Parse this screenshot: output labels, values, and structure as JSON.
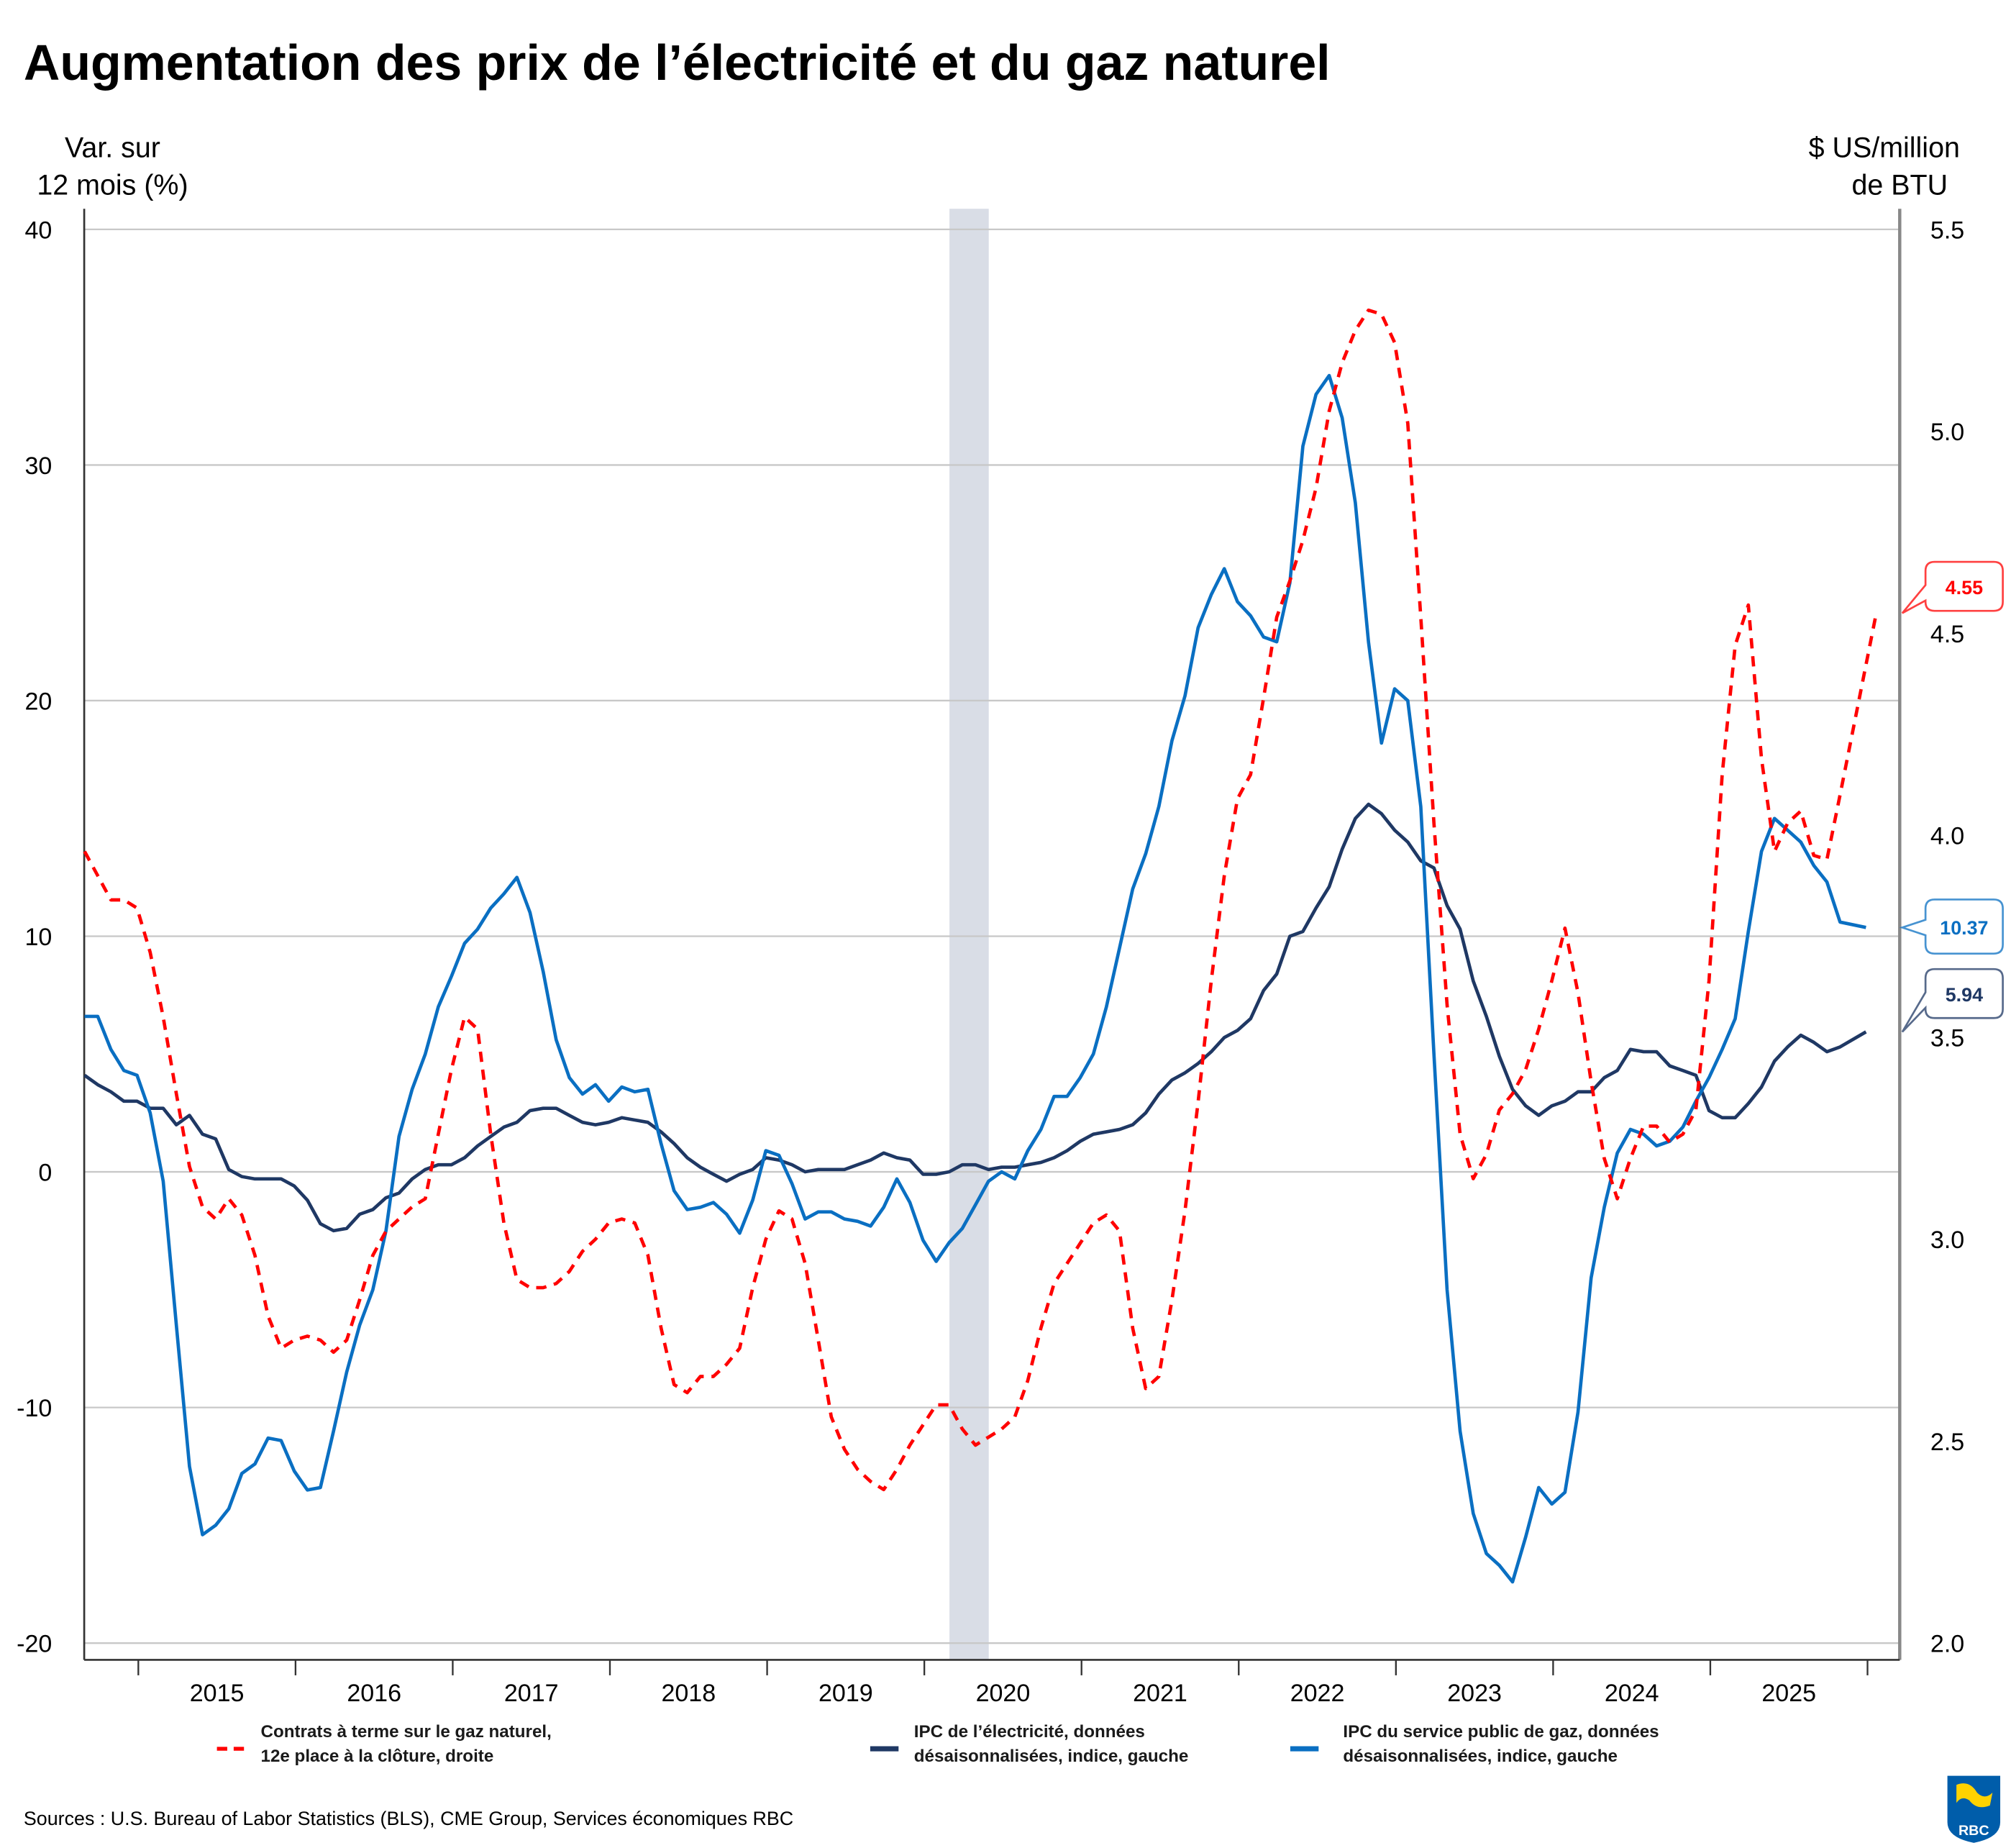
{
  "title": "Augmentation des prix de l’électricité et du gaz naturel",
  "left_axis_title": [
    "Var. sur",
    "12 mois (%)"
  ],
  "right_axis_title": [
    "$ US/million",
    "de BTU"
  ],
  "source": "Sources : U.S. Bureau of Labor Statistics (BLS), CME Group, Services économiques RBC",
  "logo_text": "RBC",
  "colors": {
    "gas_futures": "#ff0000",
    "electricity_cpi": "#1f3864",
    "gas_utility_cpi": "#0a6fc2",
    "recession": "#d9dde6",
    "grid": "#c8c8c8"
  },
  "chart_data": {
    "type": "line",
    "title": "Augmentation des prix de l’électricité et du gaz naturel",
    "period": {
      "start": "2014-09",
      "end": "2025-12",
      "frequency": "monthly"
    },
    "x_tick_labels": [
      "2015",
      "2016",
      "2017",
      "2018",
      "2019",
      "2020",
      "2021",
      "2022",
      "2023",
      "2024",
      "2025"
    ],
    "left_axis": {
      "label": "Var. sur 12 mois (%)",
      "range": [
        -20,
        40
      ],
      "ticks": [
        "40",
        "30",
        "20",
        "10",
        "0",
        "-10",
        "-20"
      ]
    },
    "right_axis": {
      "label": "$ US/million de BTU",
      "range": [
        2.0,
        5.5
      ],
      "ticks": [
        "5.5",
        "5.0",
        "4.5",
        "4.0",
        "3.5",
        "3.0",
        "2.5",
        "2.0"
      ]
    },
    "grid": true,
    "recession_shading": {
      "start": "2020-04",
      "end": "2020-06"
    },
    "legend_position": "bottom",
    "series": [
      {
        "name": "Contrats à terme sur le gaz naturel, 12e place à la clôture, droite",
        "legend_lines": [
          "Contrats à terme sur le gaz naturel,",
          "12e place à la clôture, droite"
        ],
        "axis": "right",
        "style": "dashed",
        "color": "#ff0000",
        "last_value_label": "4.55",
        "values": [
          3.96,
          3.9,
          3.84,
          3.84,
          3.82,
          3.71,
          3.55,
          3.36,
          3.18,
          3.08,
          3.05,
          3.1,
          3.06,
          2.96,
          2.81,
          2.73,
          2.75,
          2.76,
          2.75,
          2.72,
          2.75,
          2.85,
          2.96,
          3.02,
          3.05,
          3.08,
          3.1,
          3.26,
          3.42,
          3.55,
          3.52,
          3.26,
          3.04,
          2.9,
          2.88,
          2.88,
          2.89,
          2.92,
          2.97,
          3.0,
          3.04,
          3.05,
          3.04,
          2.96,
          2.78,
          2.64,
          2.62,
          2.66,
          2.66,
          2.69,
          2.73,
          2.88,
          3.0,
          3.07,
          3.05,
          2.94,
          2.75,
          2.56,
          2.48,
          2.43,
          2.4,
          2.38,
          2.43,
          2.49,
          2.54,
          2.59,
          2.59,
          2.53,
          2.49,
          2.51,
          2.53,
          2.56,
          2.65,
          2.78,
          2.89,
          2.94,
          2.99,
          3.04,
          3.06,
          3.02,
          2.78,
          2.63,
          2.66,
          2.85,
          3.07,
          3.34,
          3.64,
          3.9,
          4.09,
          4.15,
          4.34,
          4.54,
          4.63,
          4.73,
          4.86,
          5.05,
          5.17,
          5.25,
          5.3,
          5.29,
          5.22,
          5.02,
          4.54,
          4.03,
          3.58,
          3.26,
          3.15,
          3.21,
          3.32,
          3.36,
          3.42,
          3.52,
          3.64,
          3.77,
          3.61,
          3.39,
          3.2,
          3.1,
          3.2,
          3.28,
          3.28,
          3.24,
          3.26,
          3.32,
          3.64,
          4.15,
          4.47,
          4.57,
          4.19,
          3.96,
          4.03,
          4.06,
          3.95,
          3.94,
          4.1,
          4.55
        ]
      },
      {
        "name": "IPC de l’électricité, données désaisonnalisées, indice, gauche",
        "legend_lines": [
          "IPC de l’électricité, données",
          "désaisonnalisées, indice, gauche"
        ],
        "axis": "left",
        "style": "solid",
        "color": "#1f3864",
        "last_value_label": "5.94",
        "values": [
          4.1,
          3.7,
          3.4,
          3.0,
          3.0,
          2.7,
          2.7,
          2.0,
          2.4,
          1.6,
          1.4,
          0.1,
          -0.2,
          -0.3,
          -0.3,
          -0.3,
          -0.6,
          -1.2,
          -2.2,
          -2.5,
          -2.4,
          -1.8,
          -1.6,
          -1.1,
          -0.9,
          -0.3,
          0.1,
          0.3,
          0.3,
          0.6,
          1.1,
          1.5,
          1.9,
          2.1,
          2.6,
          2.7,
          2.7,
          2.4,
          2.1,
          2.0,
          2.1,
          2.3,
          2.2,
          2.1,
          1.7,
          1.2,
          0.6,
          0.2,
          -0.1,
          -0.4,
          -0.1,
          0.1,
          0.6,
          0.5,
          0.3,
          0.0,
          0.1,
          0.1,
          0.1,
          0.3,
          0.5,
          0.8,
          0.6,
          0.5,
          -0.1,
          -0.1,
          0.0,
          0.3,
          0.3,
          0.1,
          0.2,
          0.2,
          0.3,
          0.4,
          0.6,
          0.9,
          1.3,
          1.6,
          1.7,
          1.8,
          2.0,
          2.5,
          3.3,
          3.9,
          4.2,
          4.6,
          5.1,
          5.7,
          6.0,
          6.5,
          7.7,
          8.4,
          10.0,
          10.2,
          11.2,
          12.1,
          13.7,
          15.0,
          15.6,
          15.2,
          14.5,
          14.0,
          13.2,
          12.9,
          11.3,
          10.3,
          8.1,
          6.6,
          4.9,
          3.5,
          2.8,
          2.4,
          2.8,
          3.0,
          3.4,
          3.4,
          4.0,
          4.3,
          5.2,
          5.1,
          5.1,
          4.5,
          4.3,
          4.1,
          2.6,
          2.3,
          2.3,
          2.9,
          3.6,
          4.7,
          5.3,
          5.8,
          5.5,
          5.1,
          5.3,
          5.94
        ]
      },
      {
        "name": "IPC du service public de gaz, données désaisonnalisées, indice, gauche",
        "legend_lines": [
          "IPC du service public de gaz, données",
          "désaisonnalisées, indice, gauche"
        ],
        "axis": "left",
        "style": "solid",
        "color": "#0a6fc2",
        "last_value_label": "10.37",
        "values": [
          6.6,
          6.6,
          5.2,
          4.3,
          4.1,
          2.5,
          -0.4,
          -6.5,
          -12.5,
          -15.4,
          -15.0,
          -14.3,
          -12.8,
          -12.4,
          -11.3,
          -11.4,
          -12.7,
          -13.5,
          -13.4,
          -11.0,
          -8.5,
          -6.5,
          -5.0,
          -2.5,
          1.5,
          3.5,
          5.0,
          7.0,
          8.3,
          9.7,
          10.3,
          11.2,
          11.8,
          12.5,
          11.0,
          8.5,
          5.6,
          4.0,
          3.3,
          3.7,
          3.0,
          3.6,
          3.4,
          3.5,
          1.2,
          -0.8,
          -1.6,
          -1.5,
          -1.3,
          -1.8,
          -2.6,
          -1.2,
          0.9,
          0.7,
          -0.5,
          -2.0,
          -1.7,
          -1.7,
          -2.0,
          -2.1,
          -2.3,
          -1.5,
          -0.3,
          -1.3,
          -2.9,
          -3.8,
          -3.0,
          -2.4,
          -1.4,
          -0.4,
          0.0,
          -0.3,
          0.9,
          1.8,
          3.2,
          3.2,
          4.0,
          5.0,
          7.0,
          9.5,
          12.0,
          13.5,
          15.5,
          18.3,
          20.2,
          23.1,
          24.5,
          25.6,
          24.2,
          23.6,
          22.7,
          22.5,
          25.0,
          30.8,
          33.0,
          33.8,
          32.0,
          28.4,
          22.5,
          18.2,
          20.5,
          20.0,
          15.5,
          5.0,
          -5.0,
          -11.0,
          -14.5,
          -16.2,
          -16.7,
          -17.4,
          -15.5,
          -13.4,
          -14.1,
          -13.6,
          -10.2,
          -4.5,
          -1.5,
          0.8,
          1.8,
          1.6,
          1.1,
          1.3,
          1.9,
          3.0,
          4.0,
          5.2,
          6.5,
          10.2,
          13.6,
          15.0,
          14.5,
          14.0,
          13.0,
          12.3,
          10.6,
          10.37
        ]
      }
    ]
  }
}
